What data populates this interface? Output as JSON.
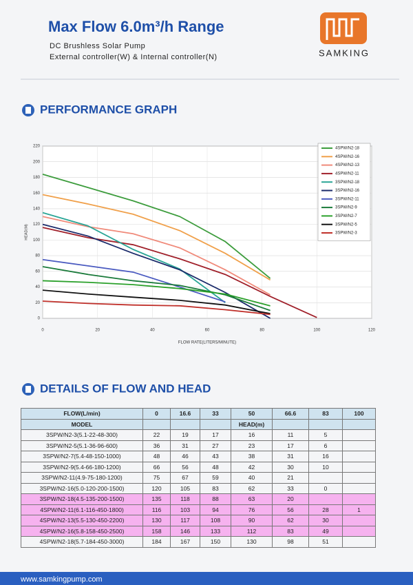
{
  "header": {
    "title": "Max Flow 6.0m³/h Range",
    "subtitle": "DC Brushless Solar Pump",
    "subtitle2": "External controller(W) & Internal controller(N)",
    "brand": "SAMKING"
  },
  "graph_section": {
    "title": "PERFORMANCE GRAPH"
  },
  "chart_data": {
    "type": "line",
    "x_label": "FLOW RATE(LITERS/MINUTE)",
    "y_label": "HEAD(M)",
    "x": [
      0,
      16.6,
      33,
      50,
      66.6,
      83,
      100
    ],
    "xlim": [
      0,
      120
    ],
    "xticks": [
      0,
      20,
      40,
      60,
      80,
      100,
      120
    ],
    "ylim": [
      0,
      220
    ],
    "yticks": [
      0,
      20,
      40,
      60,
      80,
      100,
      120,
      140,
      160,
      180,
      200,
      220
    ],
    "grid": true,
    "legend": "top-right",
    "series": [
      {
        "name": "4SPW/N2-18",
        "color": "#3c9c3c",
        "values": [
          184,
          167,
          150,
          130,
          98,
          51,
          null
        ]
      },
      {
        "name": "4SPW/N2-16",
        "color": "#f0a04a",
        "values": [
          158,
          146,
          133,
          112,
          83,
          49,
          null
        ]
      },
      {
        "name": "4SPW/N2-13",
        "color": "#f08a7a",
        "values": [
          130,
          117,
          108,
          90,
          62,
          30,
          null
        ]
      },
      {
        "name": "4SPW/N2-11",
        "color": "#a0202a",
        "values": [
          116,
          103,
          94,
          76,
          56,
          28,
          1
        ]
      },
      {
        "name": "3SPW/N2-18",
        "color": "#2aa596",
        "values": [
          135,
          118,
          88,
          63,
          20,
          null,
          null
        ]
      },
      {
        "name": "3SPW/N2-16",
        "color": "#1a2a6a",
        "values": [
          120,
          105,
          83,
          62,
          33,
          0,
          null
        ]
      },
      {
        "name": "3SPW/N2-11",
        "color": "#4a5ac0",
        "values": [
          75,
          67,
          59,
          40,
          21,
          null,
          null
        ]
      },
      {
        "name": "3SPW/N2-9",
        "color": "#1a7a3a",
        "values": [
          66,
          56,
          48,
          42,
          30,
          10,
          null
        ]
      },
      {
        "name": "3SPW/N2-7",
        "color": "#2aa02a",
        "values": [
          48,
          46,
          43,
          38,
          31,
          16,
          null
        ]
      },
      {
        "name": "3SPW/N2-5",
        "color": "#111111",
        "values": [
          36,
          31,
          27,
          23,
          17,
          6,
          null
        ]
      },
      {
        "name": "3SPW/N2-3",
        "color": "#c0302a",
        "values": [
          22,
          19,
          17,
          16,
          11,
          5,
          null
        ]
      }
    ]
  },
  "table_section": {
    "title": "DETAILS OF FLOW AND HEAD"
  },
  "table": {
    "flow_label": "FLOW(L/min)",
    "flows": [
      0,
      16.6,
      33,
      50,
      66.6,
      83,
      100
    ],
    "model_label": "MODEL",
    "head_label": "HEAD(m)",
    "rows": [
      [
        "3SPW/N2-3(5.1-22-48-300)",
        22,
        19,
        17,
        16,
        11,
        5,
        null
      ],
      [
        "3SPW/N2-5(5.1-36-96-600)",
        36,
        31,
        27,
        23,
        17,
        6,
        null
      ],
      [
        "3SPW/N2-7(5.4-48-150-1000)",
        48,
        46,
        43,
        38,
        31,
        16,
        null
      ],
      [
        "3SPW/N2-9(5.4-66-180-1200)",
        66,
        56,
        48,
        42,
        30,
        10,
        null
      ],
      [
        "3SPW/N2-11(4.9-75-180-1200)",
        75,
        67,
        59,
        40,
        21,
        null,
        null
      ],
      [
        "3SPW/N2-16(5.0-120-200-1500)",
        120,
        105,
        83,
        62,
        33,
        0,
        null
      ],
      [
        "3SPW/N2-18(4.5-135-200-1500)",
        135,
        118,
        88,
        63,
        20,
        null,
        null
      ],
      [
        "4SPW/N2-11(6.1-116-450-1800)",
        116,
        103,
        94,
        76,
        56,
        28,
        1
      ],
      [
        "4SPW/N2-13(5.5-130-450-2200)",
        130,
        117,
        108,
        90,
        62,
        30,
        null
      ],
      [
        "4SPW/N2-16(5.8-158-450-2500)",
        158,
        146,
        133,
        112,
        83,
        49,
        null
      ],
      [
        "4SPW/N2-18(5.7-184-450-3000)",
        184,
        167,
        150,
        130,
        98,
        51,
        null
      ]
    ]
  },
  "footer": {
    "url": "www.samkingpump.com"
  }
}
